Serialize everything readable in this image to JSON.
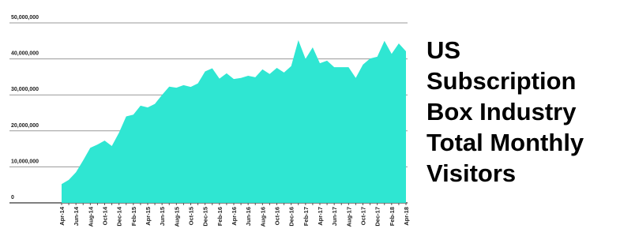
{
  "chart_data": {
    "type": "area",
    "title": "US Subscription Box Industry Total Monthly Visitors",
    "categories": [
      "Apr-14",
      null,
      "Jun-14",
      null,
      "Aug-14",
      null,
      "Oct-14",
      null,
      "Dec-14",
      null,
      "Feb-15",
      null,
      "Apr-15",
      null,
      "Jun-15",
      null,
      "Aug-15",
      null,
      "Oct-15",
      null,
      "Dec-15",
      null,
      "Feb-16",
      null,
      "Apr-16",
      null,
      "Jun-16",
      null,
      "Aug-16",
      null,
      "Oct-16",
      null,
      "Dec-16",
      null,
      "Feb-17",
      null,
      "Apr-17",
      null,
      "Jun-17",
      null,
      "Aug-17",
      null,
      "Oct-17",
      null,
      "Dec-17",
      null,
      "Feb-18",
      null,
      "Apr-18"
    ],
    "values": [
      5200000,
      6400000,
      8500000,
      11800000,
      15300000,
      16200000,
      17300000,
      15800000,
      19500000,
      24000000,
      24500000,
      27000000,
      26500000,
      27500000,
      30000000,
      32300000,
      32000000,
      32700000,
      32200000,
      33200000,
      36500000,
      37400000,
      34500000,
      36000000,
      34400000,
      34700000,
      35300000,
      34900000,
      37100000,
      35800000,
      37500000,
      36200000,
      38000000,
      45200000,
      40000000,
      43200000,
      38800000,
      39500000,
      37700000,
      37700000,
      37700000,
      34700000,
      38400000,
      40100000,
      40600000,
      45000000,
      41400000,
      44300000,
      42100000
    ],
    "color": "#2fe6d2",
    "ylim": [
      0,
      50000000
    ],
    "yticks": [
      0,
      {
        "value": 10000000,
        "label": "10,000,000"
      },
      {
        "value": 20000000,
        "label": "20,000,000"
      },
      {
        "value": 30000000,
        "label": "30,000,000"
      },
      {
        "value": 40000000,
        "label": "40,000,000"
      },
      {
        "value": 50000000,
        "label": "50,000,000"
      }
    ],
    "grid": true
  }
}
